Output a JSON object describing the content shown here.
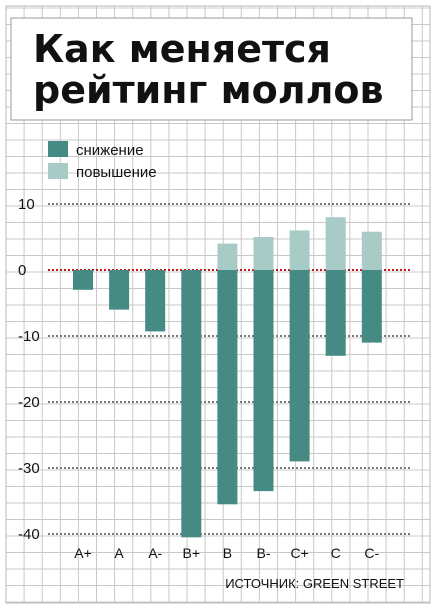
{
  "chart_data": {
    "type": "bar",
    "title_lines": [
      "Как меняется",
      "рейтинг моллов"
    ],
    "categories": [
      "A+",
      "A",
      "A-",
      "B+",
      "B",
      "B-",
      "C+",
      "C",
      "C-"
    ],
    "series": [
      {
        "name": "снижение",
        "color": "#458a83",
        "values": [
          -3,
          -6,
          -9.3,
          -40.5,
          -35.5,
          -33.5,
          -29,
          -13,
          -11
        ]
      },
      {
        "name": "повышение",
        "color": "#a9cbc6",
        "values": [
          0,
          0,
          0,
          0,
          4,
          5,
          6,
          8,
          5.8
        ]
      }
    ],
    "ylim": [
      -42,
      12
    ],
    "yticks": [
      10,
      0,
      -10,
      -20,
      -30,
      -40
    ],
    "ytick_labels": [
      "10",
      "0",
      "-10",
      "-20",
      "-30",
      "-40"
    ],
    "grid": true,
    "legend_position": "top-left",
    "source": "ИСТОЧНИК: GREEN STREET"
  }
}
